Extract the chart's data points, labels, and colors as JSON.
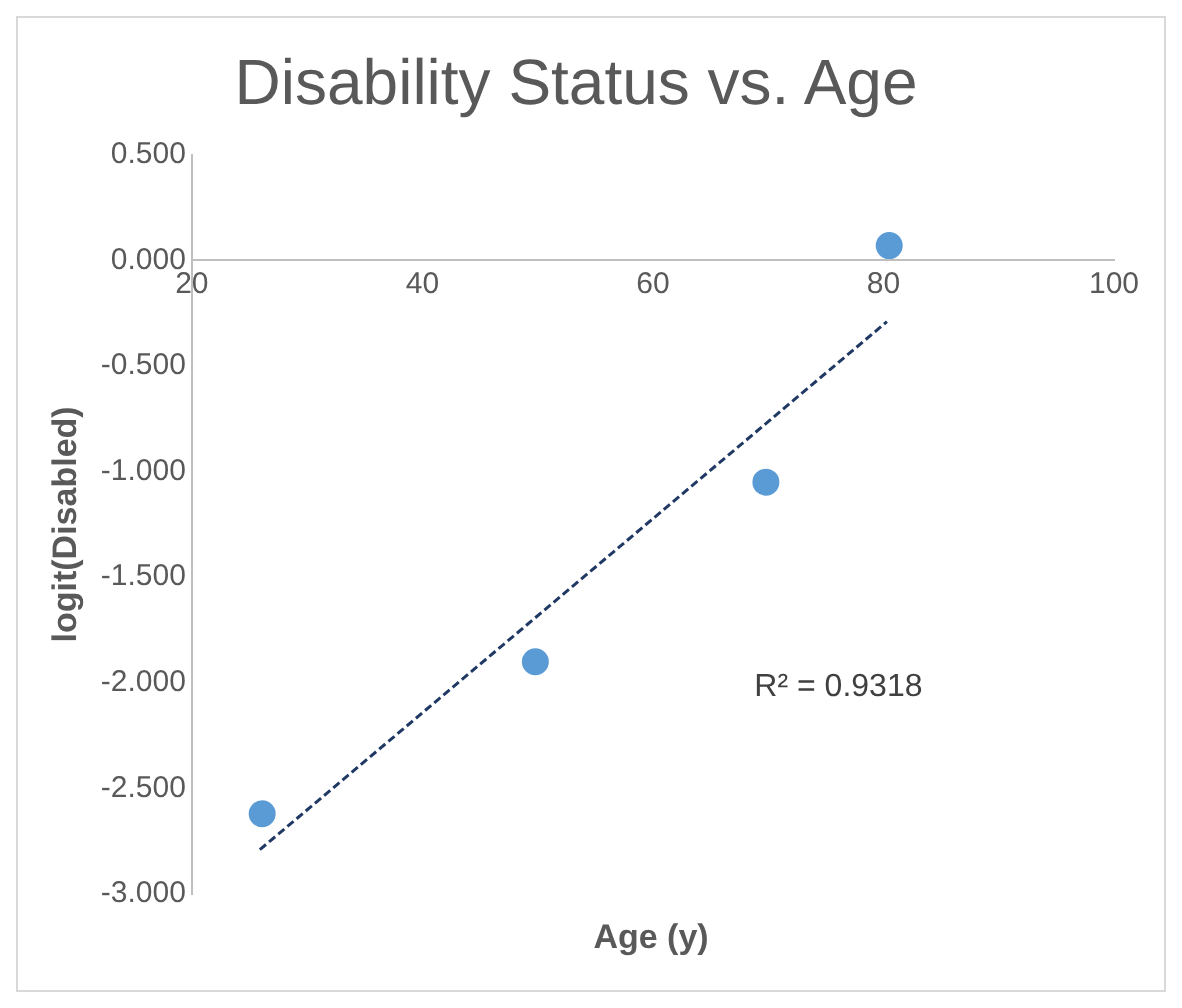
{
  "chart_data": {
    "type": "scatter",
    "title": "Disability Status vs. Age",
    "xlabel": "Age (y)",
    "ylabel": "logit(Disabled)",
    "series": [
      {
        "type": "scatter",
        "x": [
          26.1,
          49.8,
          69.8,
          80.5
        ],
        "values": [
          -2.62,
          -1.9,
          -1.05,
          0.07
        ],
        "color": "#5b9bd5",
        "marker": "circle"
      },
      {
        "type": "line",
        "x": [
          25.9,
          80.3
        ],
        "values": [
          -2.79,
          -0.29
        ],
        "color": "#1f3864",
        "line_style": "dashed",
        "marker": "none"
      }
    ],
    "xlim": [
      20,
      100
    ],
    "xticks": [
      20,
      40,
      60,
      80,
      100
    ],
    "ylim": [
      -3,
      0.5
    ],
    "yticks": [
      {
        "value": 0.5,
        "label": "0.500"
      },
      {
        "value": 0,
        "label": "0.000"
      },
      {
        "value": -0.5,
        "label": "-0.500"
      },
      {
        "value": -1,
        "label": "-1.000"
      },
      {
        "value": -1.5,
        "label": "-1.500"
      },
      {
        "value": -2,
        "label": "-2.000"
      },
      {
        "value": -2.5,
        "label": "-2.500"
      },
      {
        "value": -3,
        "label": "-3.000"
      }
    ],
    "annotations": [
      "R² = 0.9318"
    ]
  }
}
